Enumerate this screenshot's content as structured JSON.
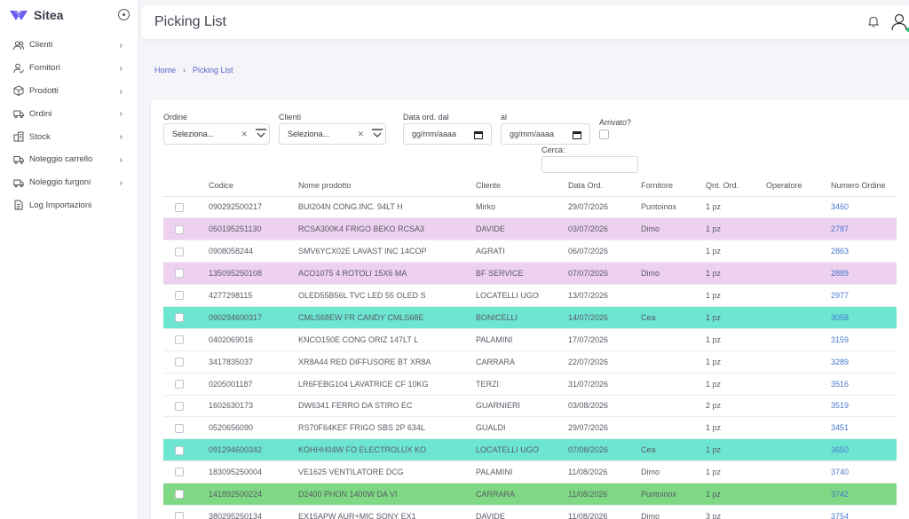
{
  "app": {
    "name": "Sitea"
  },
  "sidebar": {
    "items": [
      {
        "label": "Clienti",
        "icon": "users-icon",
        "has_children": true
      },
      {
        "label": "Fornitori",
        "icon": "user-check-icon",
        "has_children": true
      },
      {
        "label": "Prodotti",
        "icon": "box-icon",
        "has_children": true
      },
      {
        "label": "Ordini",
        "icon": "truck-icon",
        "has_children": true
      },
      {
        "label": "Stock",
        "icon": "building-icon",
        "has_children": true
      },
      {
        "label": "Noleggio carrello",
        "icon": "cart-truck-icon",
        "has_children": true
      },
      {
        "label": "Noleggio furgoni",
        "icon": "van-icon",
        "has_children": true
      },
      {
        "label": "Log Importazioni",
        "icon": "file-icon",
        "has_children": false
      }
    ]
  },
  "header": {
    "title": "Picking List"
  },
  "breadcrumb": {
    "home": "Home",
    "current": "Picking List"
  },
  "filters": {
    "ordine_label": "Ordine",
    "ordine_value": "Seleziona...",
    "clienti_label": "Clienti",
    "clienti_value": "Seleziona...",
    "data_dal_label": "Data ord. dal",
    "data_dal_value": "gg/mm/aaaa",
    "data_al_label": "al",
    "data_al_value": "gg/mm/aaaa",
    "arrivato_label": "Arrivato?",
    "arrivato_checked": false,
    "cerca_label": "Cerca:",
    "cerca_value": ""
  },
  "table": {
    "columns": [
      "",
      "Codice",
      "Nome prodotto",
      "Cliente",
      "Data Ord.",
      "Fornitore",
      "Qnt. Ord.",
      "Operatore",
      "Numero Ordine"
    ],
    "rows": [
      {
        "codice": "090292500217",
        "nome": "BUI204N CONG.INC. 94LT H",
        "cliente": "Mirko",
        "data": "29/07/2026",
        "fornitore": "Puntoinox",
        "qnt": "1 pz",
        "operatore": "",
        "numero": "3460",
        "highlight": ""
      },
      {
        "codice": "050195251130",
        "nome": "RCSA300K4 FRIGO BEKO RCSA3",
        "cliente": "DAVIDE",
        "data": "03/07/2026",
        "fornitore": "Dimo",
        "qnt": "1 pz",
        "operatore": "",
        "numero": "2787",
        "highlight": "pink"
      },
      {
        "codice": "0908058244",
        "nome": "SMV6YCX02E LAVAST INC 14COP",
        "cliente": "AGRATI",
        "data": "06/07/2026",
        "fornitore": "",
        "qnt": "1 pz",
        "operatore": "",
        "numero": "2863",
        "highlight": ""
      },
      {
        "codice": "135095250108",
        "nome": "ACO1075 4 ROTOLI 15X6 MA",
        "cliente": "BF SERVICE",
        "data": "07/07/2026",
        "fornitore": "Dimo",
        "qnt": "1 pz",
        "operatore": "",
        "numero": "2889",
        "highlight": "pink"
      },
      {
        "codice": "4277298115",
        "nome": "OLED55B56L TVC LED 55 OLED S",
        "cliente": "LOCATELLI UGO",
        "data": "13/07/2026",
        "fornitore": "",
        "qnt": "1 pz",
        "operatore": "",
        "numero": "2977",
        "highlight": ""
      },
      {
        "codice": "090294600317",
        "nome": "CMLS68EW FR CANDY CMLS68E",
        "cliente": "BONICELLI",
        "data": "14/07/2026",
        "fornitore": "Cea",
        "qnt": "1 pz",
        "operatore": "",
        "numero": "3058",
        "highlight": "teal"
      },
      {
        "codice": "0402069016",
        "nome": "KNCO150E CONG ORIZ 147LT L",
        "cliente": "PALAMINI",
        "data": "17/07/2026",
        "fornitore": "",
        "qnt": "1 pz",
        "operatore": "",
        "numero": "3159",
        "highlight": ""
      },
      {
        "codice": "3417835037",
        "nome": "XR8A44 RED DIFFUSORE BT XR8A",
        "cliente": "CARRARA",
        "data": "22/07/2026",
        "fornitore": "",
        "qnt": "1 pz",
        "operatore": "",
        "numero": "3289",
        "highlight": ""
      },
      {
        "codice": "0205001187",
        "nome": "LR6FEBG104 LAVATRICE CF 10KG",
        "cliente": "TERZI",
        "data": "31/07/2026",
        "fornitore": "",
        "qnt": "1 pz",
        "operatore": "",
        "numero": "3516",
        "highlight": ""
      },
      {
        "codice": "1602630173",
        "nome": "DW6341 FERRO DA STIRO EC",
        "cliente": "GUARNIERI",
        "data": "03/08/2026",
        "fornitore": "",
        "qnt": "2 pz",
        "operatore": "",
        "numero": "3519",
        "highlight": ""
      },
      {
        "codice": "0520656090",
        "nome": "RS70F64KEF FRIGO SBS 2P 634L",
        "cliente": "GUALDI",
        "data": "29/07/2026",
        "fornitore": "",
        "qnt": "1 pz",
        "operatore": "",
        "numero": "3451",
        "highlight": ""
      },
      {
        "codice": "091294600342",
        "nome": "KOHHH04W FO ELECTROLUX KO",
        "cliente": "LOCATELLI UGO",
        "data": "07/08/2026",
        "fornitore": "Cea",
        "qnt": "1 pz",
        "operatore": "",
        "numero": "3650",
        "highlight": "teal"
      },
      {
        "codice": "183095250004",
        "nome": "VE1625 VENTILATORE DCG",
        "cliente": "PALAMINI",
        "data": "11/08/2026",
        "fornitore": "Dimo",
        "qnt": "1 pz",
        "operatore": "",
        "numero": "3740",
        "highlight": ""
      },
      {
        "codice": "141892500224",
        "nome": "D2400 PHON 1400W DA VI",
        "cliente": "CARRARA",
        "data": "11/08/2026",
        "fornitore": "Puntoinox",
        "qnt": "1 pz",
        "operatore": "",
        "numero": "3742",
        "highlight": "green"
      },
      {
        "codice": "380295250134",
        "nome": "EX15APW AUR+MIC SONY EX1",
        "cliente": "DAVIDE",
        "data": "11/08/2026",
        "fornitore": "Dimo",
        "qnt": "3 pz",
        "operatore": "",
        "numero": "3754",
        "highlight": ""
      }
    ]
  },
  "colors": {
    "accent": "#5b62c8",
    "link": "#4a78d0",
    "pink": "#edd1ef",
    "teal": "#6de6d1",
    "green": "#7fd984"
  }
}
